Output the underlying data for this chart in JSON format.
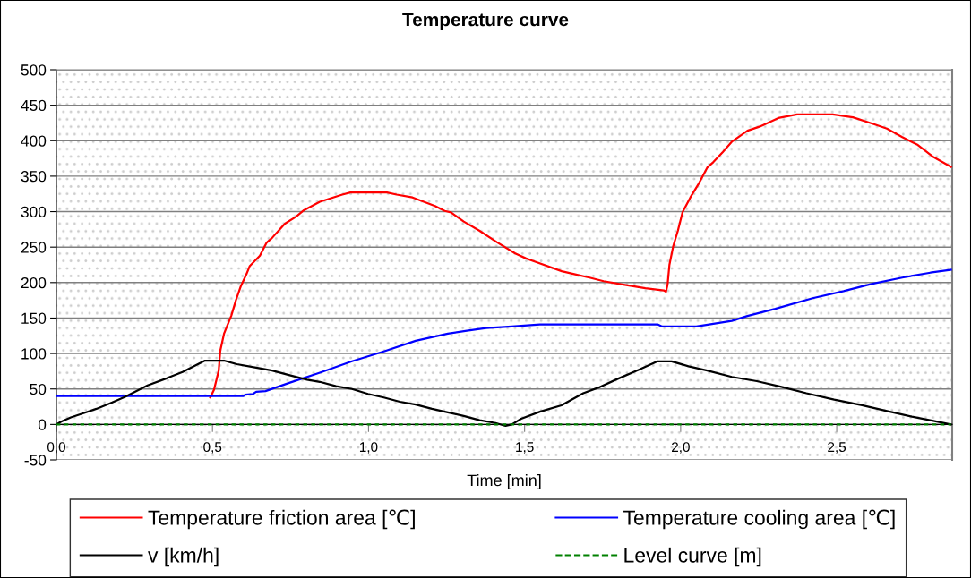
{
  "chart_data": {
    "type": "line",
    "title": "Temperature curve",
    "xlabel": "Time [min]",
    "xlim": [
      0,
      2.87
    ],
    "xticks": [
      {
        "value": 0,
        "label": "0,0"
      },
      {
        "value": 0.5,
        "label": "0,5"
      },
      {
        "value": 1.0,
        "label": "1,0"
      },
      {
        "value": 1.5,
        "label": "1,5"
      },
      {
        "value": 2.0,
        "label": "2,0"
      },
      {
        "value": 2.5,
        "label": "2,5"
      }
    ],
    "ylim": [
      -50,
      500
    ],
    "yticks": [
      -50,
      0,
      50,
      100,
      150,
      200,
      250,
      300,
      350,
      400,
      450,
      500
    ],
    "grid": "y",
    "legend": "bottom",
    "series": [
      {
        "name": "Temperature friction area [℃]",
        "color": "#ff0000",
        "x": [
          0.493,
          0.505,
          0.52,
          0.525,
          0.537,
          0.56,
          0.575,
          0.59,
          0.609,
          0.619,
          0.652,
          0.673,
          0.691,
          0.732,
          0.768,
          0.793,
          0.844,
          0.916,
          0.942,
          1.059,
          1.09,
          1.141,
          1.213,
          1.244,
          1.264,
          1.305,
          1.356,
          1.411,
          1.47,
          1.505,
          1.53,
          1.619,
          1.659,
          1.708,
          1.753,
          1.817,
          1.887,
          1.946,
          1.953,
          1.958,
          1.964,
          1.976,
          1.991,
          2.006,
          2.031,
          2.056,
          2.085,
          2.105,
          2.135,
          2.165,
          2.214,
          2.254,
          2.313,
          2.373,
          2.487,
          2.552,
          2.621,
          2.661,
          2.71,
          2.76,
          2.81,
          2.866
        ],
        "values": [
          38,
          49,
          76,
          104,
          128,
          153,
          175,
          194,
          212,
          223,
          238,
          256,
          263,
          283,
          293,
          302,
          314,
          324,
          327,
          327,
          324,
          320,
          308,
          301,
          299,
          286,
          273,
          257,
          241,
          234,
          230,
          216,
          212,
          207,
          202,
          197,
          192,
          189,
          187,
          197,
          225,
          251,
          273,
          299,
          320,
          338,
          362,
          370,
          384,
          399,
          414,
          420,
          432,
          437,
          437,
          433,
          423,
          417,
          405,
          394,
          377,
          363
        ]
      },
      {
        "name": "Temperature cooling area [℃]",
        "color": "#0000ff",
        "x": [
          0,
          0.599,
          0.605,
          0.63,
          0.64,
          0.67,
          0.742,
          0.844,
          0.947,
          1.049,
          1.151,
          1.254,
          1.315,
          1.377,
          1.459,
          1.549,
          1.926,
          1.941,
          2.05,
          2.105,
          2.164,
          2.214,
          2.303,
          2.423,
          2.522,
          2.611,
          2.71,
          2.8,
          2.866
        ],
        "values": [
          40,
          40,
          42,
          43,
          46,
          47,
          58,
          73,
          89,
          103,
          118,
          128,
          132,
          136,
          138,
          141,
          141,
          138,
          138,
          142,
          146,
          153,
          163,
          178,
          188,
          198,
          207,
          214,
          218
        ]
      },
      {
        "name": "v [km/h]",
        "color": "#000000",
        "x": [
          0,
          0.015,
          0.046,
          0.087,
          0.128,
          0.179,
          0.22,
          0.261,
          0.292,
          0.353,
          0.404,
          0.435,
          0.476,
          0.537,
          0.578,
          0.64,
          0.691,
          0.742,
          0.803,
          0.844,
          0.896,
          0.947,
          0.998,
          1.049,
          1.1,
          1.151,
          1.203,
          1.254,
          1.305,
          1.356,
          1.407,
          1.439,
          1.459,
          1.489,
          1.549,
          1.618,
          1.688,
          1.737,
          1.797,
          1.866,
          1.926,
          1.971,
          2.025,
          2.085,
          2.164,
          2.244,
          2.323,
          2.403,
          2.492,
          2.581,
          2.661,
          2.741,
          2.81,
          2.866
        ],
        "values": [
          0,
          4,
          10,
          16,
          22,
          31,
          39,
          48,
          55,
          65,
          74,
          81,
          90,
          90,
          85,
          80,
          76,
          70,
          63,
          60,
          54,
          50,
          43,
          38,
          32,
          28,
          22,
          17,
          12,
          6,
          2,
          -2,
          0,
          8,
          18,
          27,
          44,
          52,
          64,
          77,
          89,
          89,
          82,
          76,
          67,
          61,
          53,
          44,
          35,
          27,
          19,
          11,
          5,
          0
        ]
      },
      {
        "name": "Level curve [m]",
        "color": "#008000",
        "line_style": "dotted",
        "x": [
          0,
          2.866
        ],
        "values": [
          0,
          0
        ]
      }
    ]
  }
}
